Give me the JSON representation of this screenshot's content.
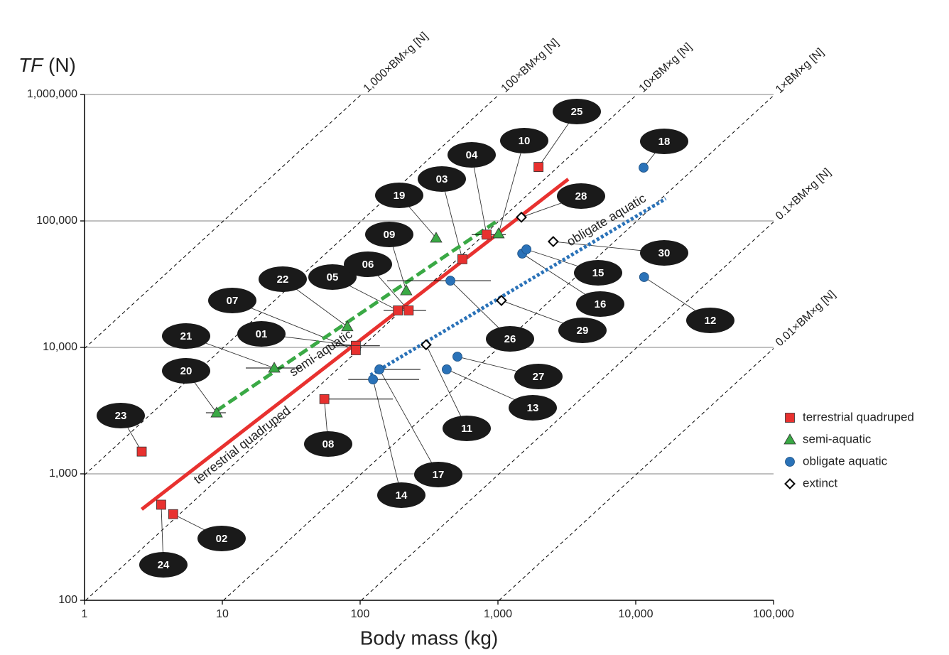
{
  "chart_data": {
    "type": "scatter",
    "y_label": {
      "var": "TF",
      "unit": "(N)"
    },
    "x_label": "Body mass (kg)",
    "xscale": "log",
    "yscale": "log",
    "xlim": [
      1,
      100000
    ],
    "xticks": [
      1,
      10,
      100,
      {
        "value": 1000,
        "label": "1,000"
      },
      {
        "value": 10000,
        "label": "10,000"
      },
      {
        "value": 100000,
        "label": "100,000"
      }
    ],
    "ylim": [
      100,
      1000000
    ],
    "yticks": [
      100,
      {
        "value": 1000,
        "label": "1,000"
      },
      {
        "value": 10000,
        "label": "10,000"
      },
      {
        "value": 100000,
        "label": "100,000"
      },
      {
        "value": 1000000,
        "label": "1,000,000"
      }
    ],
    "grid": true,
    "legend": "right",
    "reference_lines": [
      {
        "factor": 1000,
        "label": "1,000×BM×g [N]"
      },
      {
        "factor": 100,
        "label": "100×BM×g [N]"
      },
      {
        "factor": 10,
        "label": "10×BM×g [N]"
      },
      {
        "factor": 1,
        "label": "1×BM×g [N]"
      },
      {
        "factor": 0.1,
        "label": "0.1×BM×g [N]"
      },
      {
        "factor": 0.01,
        "label": "0.01×BM×g [N]"
      }
    ],
    "series": [
      {
        "name": "terrestrial quadruped",
        "color": "#e8312f",
        "marker": "square",
        "points": [
          {
            "id": "23",
            "x": 2.6,
            "y": 1500
          },
          {
            "id": "24",
            "x": 3.6,
            "y": 570
          },
          {
            "id": "02",
            "x": 4.4,
            "y": 480
          },
          {
            "id": "08",
            "x": 55,
            "y": 3900,
            "xerr": [
              55,
              173
            ]
          },
          {
            "id": "01",
            "x": 93,
            "y": 10300,
            "xerr": [
              57,
              139
            ]
          },
          {
            "id": "07",
            "x": 93,
            "y": 9500
          },
          {
            "id": "05",
            "x": 188,
            "y": 19600,
            "xerr": [
              148,
              301
            ]
          },
          {
            "id": "06",
            "x": 225,
            "y": 19600
          },
          {
            "id": "03",
            "x": 552,
            "y": 49800
          },
          {
            "id": "04",
            "x": 828,
            "y": 78000,
            "xerr": [
              645,
              1140
            ]
          },
          {
            "id": "25",
            "x": 1970,
            "y": 267000
          }
        ]
      },
      {
        "name": "semi-aquatic",
        "color": "#3aa945",
        "marker": "triangle",
        "points": [
          {
            "id": "20",
            "x": 9.1,
            "y": 3040,
            "xerr": [
              7.6,
              10.6
            ]
          },
          {
            "id": "21",
            "x": 23.8,
            "y": 6870,
            "xerr": [
              14.8,
              37.8
            ]
          },
          {
            "id": "22",
            "x": 80.7,
            "y": 14600
          },
          {
            "id": "09",
            "x": 216,
            "y": 28100
          },
          {
            "id": "19",
            "x": 356,
            "y": 73300
          },
          {
            "id": "10",
            "x": 1010,
            "y": 79300
          }
        ]
      },
      {
        "name": "obligate aquatic",
        "color": "#2a72b8",
        "marker": "circle",
        "points": [
          {
            "id": "14",
            "x": 124,
            "y": 5580,
            "xerr": [
              82,
              268
            ]
          },
          {
            "id": "17",
            "x": 138,
            "y": 6700,
            "xerr": [
              138,
              274
            ]
          },
          {
            "id": "26",
            "x": 452,
            "y": 33700,
            "xerr": [
              157,
              888
            ]
          },
          {
            "id": "13",
            "x": 425,
            "y": 6700
          },
          {
            "id": "27",
            "x": 508,
            "y": 8450
          },
          {
            "id": "16",
            "x": 1500,
            "y": 55200
          },
          {
            "id": "15",
            "x": 1610,
            "y": 59600
          },
          {
            "id": "12",
            "x": 11500,
            "y": 36000
          },
          {
            "id": "18",
            "x": 11400,
            "y": 264000
          }
        ]
      },
      {
        "name": "extinct",
        "color": "#000000",
        "marker": "diamond",
        "points": [
          {
            "id": "11",
            "x": 301,
            "y": 10500
          },
          {
            "id": "29",
            "x": 1060,
            "y": 23500
          },
          {
            "id": "28",
            "x": 1480,
            "y": 107000
          },
          {
            "id": "30",
            "x": 2520,
            "y": 68700
          }
        ]
      }
    ],
    "fits": [
      {
        "label": "terrestrial quadruped",
        "color": "#e8312f",
        "dash": "solid",
        "x": [
          2.6,
          3240
        ],
        "y": [
          524,
          214000
        ]
      },
      {
        "label": "semi-aquatic",
        "color": "#3aa945",
        "dash": "dashed",
        "x": [
          9.1,
          988
        ],
        "y": [
          3160,
          100000
        ]
      },
      {
        "label": "obligate aquatic",
        "color": "#2a72b8",
        "dash": "dotted",
        "x": [
          119,
          16500
        ],
        "y": [
          6040,
          150000
        ]
      }
    ]
  }
}
